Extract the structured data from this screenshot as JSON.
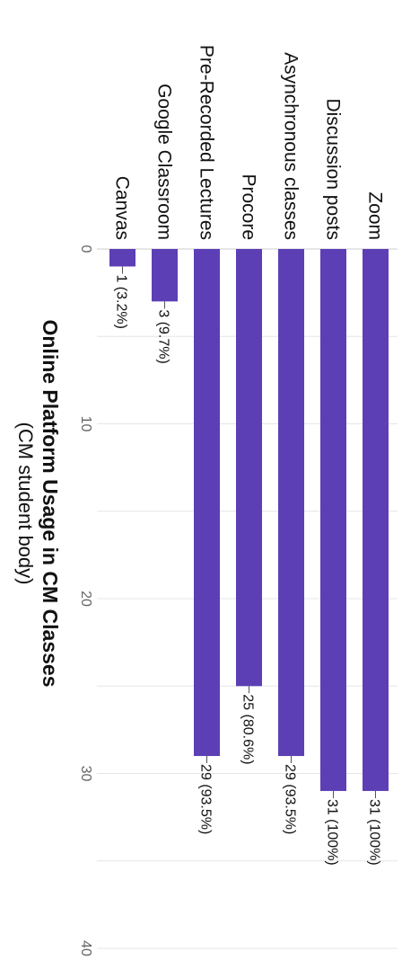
{
  "chart_data": {
    "type": "bar",
    "orientation": "horizontal",
    "title": "Online Platform Usage in CM Classes",
    "subtitle": "(CM student body)",
    "categories": [
      "Zoom",
      "Discussion posts",
      "Asynchronous classes",
      "Procore",
      "Pre-Recorded Lectures",
      "Google Classroom",
      "Canvas"
    ],
    "values": [
      31,
      31,
      29,
      25,
      29,
      3,
      1
    ],
    "data_labels": [
      "31 (100%)",
      "31 (100%)",
      "29 (93.5%)",
      "25 (80.6%)",
      "29 (93.5%)",
      "3 (9.7%)",
      "1 (3.2%)"
    ],
    "xlim": [
      0,
      40
    ],
    "ticks": [
      0,
      10,
      20,
      30,
      40
    ],
    "grid": true,
    "bar_color": "#5c3fb5",
    "grid_color": "#e6e6e6"
  }
}
